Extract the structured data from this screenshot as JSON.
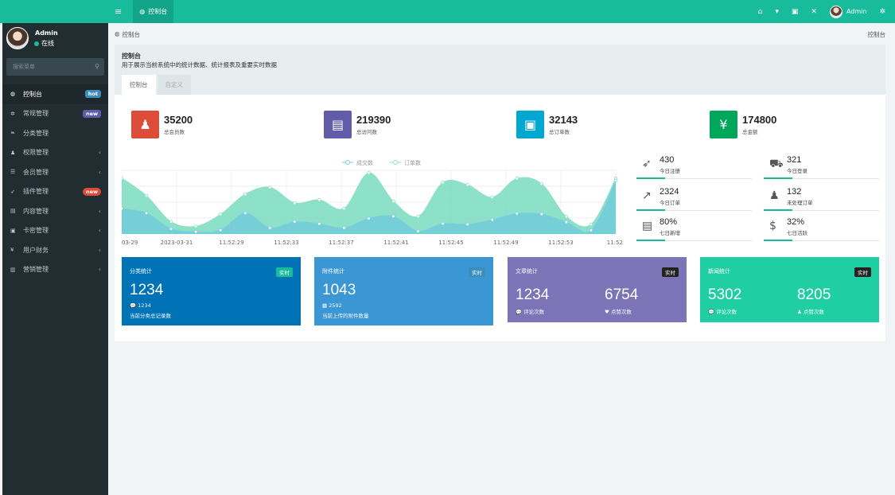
{
  "topbar": {
    "nav_tab_label": "控制台",
    "user_name": "Admin"
  },
  "sidebar": {
    "user_name": "Admin",
    "status": "在线",
    "search_placeholder": "搜索菜单",
    "items": [
      {
        "label": "控制台",
        "icon": "dashboard-icon",
        "glyph": "◍",
        "badge": "hot"
      },
      {
        "label": "常规管理",
        "icon": "cogs-icon",
        "glyph": "✲",
        "badge": "new"
      },
      {
        "label": "分类管理",
        "icon": "leaf-icon",
        "glyph": "❧"
      },
      {
        "label": "权限管理",
        "icon": "group-icon",
        "glyph": "♟"
      },
      {
        "label": "会员管理",
        "icon": "list-icon",
        "glyph": "☰"
      },
      {
        "label": "插件管理",
        "icon": "rocket-icon",
        "glyph": "➶",
        "badge": "new"
      },
      {
        "label": "内容管理",
        "icon": "file-icon",
        "glyph": "▤"
      },
      {
        "label": "卡密管理",
        "icon": "image-icon",
        "glyph": "▣"
      },
      {
        "label": "用户财务",
        "icon": "yen-icon",
        "glyph": "¥"
      },
      {
        "label": "营销管理",
        "icon": "bar-chart-icon",
        "glyph": "▥"
      }
    ]
  },
  "breadcrumb": {
    "left": "控制台",
    "right": "控制台"
  },
  "panel": {
    "title": "控制台",
    "description": "用于展示当前系统中的统计数据、统计报表及重要实时数据",
    "tabs": [
      "控制台",
      "自定义"
    ]
  },
  "stats": [
    {
      "value": "35200",
      "label": "总会员数",
      "color": "#dd4b39",
      "icon": "users-icon"
    },
    {
      "value": "219390",
      "label": "总访问数",
      "color": "#605ca8",
      "icon": "book-icon"
    },
    {
      "value": "32143",
      "label": "总订单数",
      "color": "#00a7d0",
      "icon": "shopping-bag-icon"
    },
    {
      "value": "174800",
      "label": "总金额",
      "color": "#00a65a",
      "icon": "yen-icon"
    }
  ],
  "chart_data": {
    "type": "area",
    "legend": [
      "成交数",
      "订单数"
    ],
    "x_ticks": [
      "03-29",
      "2023-03-31",
      "11:52:29",
      "11:52:33",
      "11:52:37",
      "11:52:41",
      "11:52:45",
      "11:52:49",
      "11:52:53",
      "11:52:"
    ],
    "series": [
      {
        "name": "成交数",
        "values": [
          1000,
          820,
          200,
          90,
          150,
          820,
          240,
          480,
          400,
          240,
          610,
          690,
          110,
          410,
          380,
          560,
          800,
          780,
          470,
          150,
          2100
        ]
      },
      {
        "name": "订单数",
        "values": [
          2200,
          1500,
          480,
          300,
          770,
          1560,
          1830,
          1220,
          1340,
          1000,
          2400,
          1280,
          690,
          2020,
          1930,
          1440,
          2180,
          1970,
          680,
          380,
          2180
        ]
      }
    ],
    "ylim": [
      0,
      2500
    ],
    "colors": {
      "order": "#8fe0c4",
      "deal": "#7fcde0"
    }
  },
  "mini_stats": [
    {
      "value": "430",
      "label": "今日注册",
      "icon": "rocket-icon",
      "glyph": "➶"
    },
    {
      "value": "321",
      "label": "今日登录",
      "icon": "cart-icon",
      "glyph": "⛟"
    },
    {
      "value": "2324",
      "label": "今日订单",
      "icon": "line-chart-icon",
      "glyph": "↗"
    },
    {
      "value": "132",
      "label": "未处理订单",
      "icon": "users-icon",
      "glyph": "♟"
    },
    {
      "value": "80%",
      "label": "七日新增",
      "icon": "list-alt-icon",
      "glyph": "▤"
    },
    {
      "value": "32%",
      "label": "七日活跃",
      "icon": "dollar-icon",
      "glyph": "$"
    }
  ],
  "cards": [
    {
      "title": "分类统计",
      "badge": "实时",
      "num1": "1234",
      "sub_icon": "💬",
      "sub1": "1234",
      "desc": "当前分类总记录数",
      "bg": "#0073b7",
      "badge_bg": "#18bc9c"
    },
    {
      "title": "附件统计",
      "badge": "实时",
      "num1": "1043",
      "sub_icon": "▦",
      "sub1": "2592",
      "desc": "当前上传的附件数量",
      "bg": "#3a97d4",
      "badge_bg": "#3c8dbc"
    },
    {
      "title": "文章统计",
      "badge": "实时",
      "num1": "1234",
      "num2": "6754",
      "lab1": "评论次数",
      "lab2": "点赞次数",
      "bg": "#7d74b8",
      "badge_bg": "#222"
    },
    {
      "title": "新闻统计",
      "badge": "实时",
      "num1": "5302",
      "num2": "8205",
      "lab1": "评论次数",
      "lab2": "点赞次数",
      "bg": "#1fcfa3",
      "badge_bg": "#222"
    }
  ]
}
